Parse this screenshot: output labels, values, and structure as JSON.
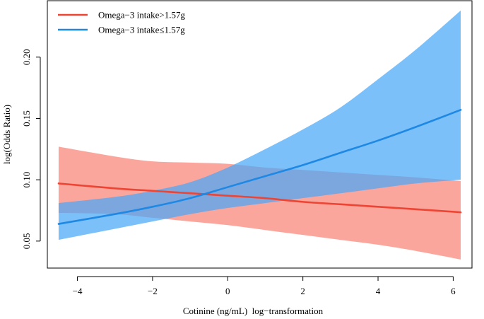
{
  "chart_data": {
    "type": "line",
    "title": "",
    "xlabel": "Cotinine (ng/mL)  log−transformation",
    "ylabel": "log(Odds Ratio)",
    "xlim": [
      -4.8,
      6.5
    ],
    "ylim": [
      0.028,
      0.246
    ],
    "xticks": [
      -4,
      -2,
      0,
      2,
      4,
      6
    ],
    "xtick_labels": [
      "−4",
      "−2",
      "0",
      "2",
      "4",
      "6"
    ],
    "yticks": [
      0.05,
      0.1,
      0.15,
      0.2
    ],
    "ytick_labels": [
      "0.05",
      "0.10",
      "0.15",
      "0.20"
    ],
    "legend_position": "top-left",
    "series": [
      {
        "name": "Omega−3 intake>1.57g",
        "line_color": "#ee4434",
        "band_color": "#fa8072",
        "band_opacity": 0.7,
        "x": [
          -4.5,
          -3.0,
          -2.0,
          -1.0,
          0.0,
          1.0,
          2.0,
          3.0,
          4.0,
          5.0,
          6.2
        ],
        "y": [
          0.097,
          0.093,
          0.091,
          0.089,
          0.087,
          0.085,
          0.082,
          0.08,
          0.078,
          0.076,
          0.0735
        ],
        "lower": [
          0.073,
          0.072,
          0.069,
          0.066,
          0.063,
          0.059,
          0.055,
          0.051,
          0.047,
          0.042,
          0.035
        ],
        "upper": [
          0.127,
          0.119,
          0.115,
          0.114,
          0.113,
          0.11,
          0.108,
          0.106,
          0.104,
          0.102,
          0.099
        ]
      },
      {
        "name": "Omega−3 intake≤1.57g",
        "line_color": "#1e88e5",
        "band_color": "#4aa8f8",
        "band_opacity": 0.72,
        "x": [
          -4.5,
          -3.0,
          -2.0,
          -1.0,
          0.0,
          1.0,
          2.0,
          3.0,
          4.0,
          5.0,
          6.2
        ],
        "y": [
          0.064,
          0.072,
          0.078,
          0.085,
          0.094,
          0.103,
          0.112,
          0.122,
          0.132,
          0.143,
          0.157
        ],
        "lower": [
          0.051,
          0.06,
          0.066,
          0.072,
          0.077,
          0.081,
          0.085,
          0.089,
          0.093,
          0.097,
          0.1
        ],
        "upper": [
          0.081,
          0.086,
          0.091,
          0.098,
          0.11,
          0.125,
          0.141,
          0.159,
          0.182,
          0.206,
          0.238
        ]
      }
    ]
  }
}
